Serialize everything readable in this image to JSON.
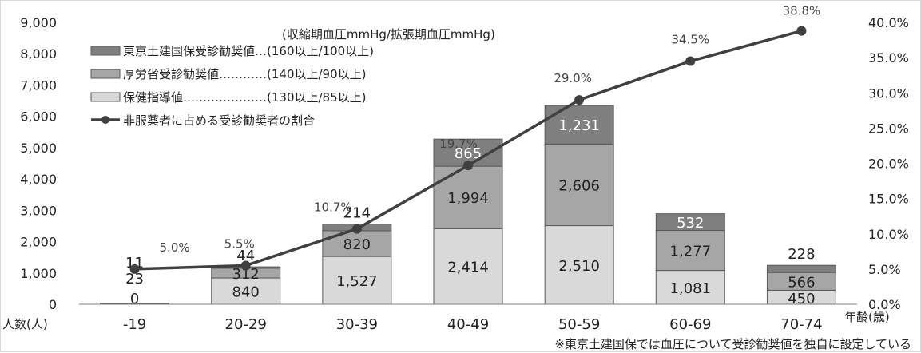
{
  "chart_data": {
    "type": "bar",
    "stacked": true,
    "categories": [
      "-19",
      "20-29",
      "30-39",
      "40-49",
      "50-59",
      "60-69",
      "70-74"
    ],
    "series": [
      {
        "name": "保健指導値…………………(130以上/85以上)",
        "values": [
          0,
          840,
          1527,
          2414,
          2510,
          1081,
          450
        ],
        "color": "#d9d9d9"
      },
      {
        "name": "厚労省受診勧奨値…………(140以上/90以上)",
        "values": [
          23,
          312,
          820,
          1994,
          2606,
          1277,
          566
        ],
        "color": "#a6a6a6"
      },
      {
        "name": "東京土建国保受診勧奨値…(160以上/100以上)",
        "values": [
          11,
          44,
          214,
          865,
          1231,
          532,
          228
        ],
        "color": "#7f7f7f"
      }
    ],
    "line": {
      "name": "非服薬者に占める受診勧奨者の割合",
      "values": [
        5.0,
        5.5,
        10.7,
        19.7,
        29.0,
        34.5,
        38.8
      ],
      "labels": [
        "5.0%",
        "5.5%",
        "10.7%",
        "19.7%",
        "29.0%",
        "34.5%",
        "38.8%"
      ],
      "color": "#404040"
    },
    "legend_title": "(収縮期血圧mmHg/拡張期血圧mmHg)",
    "ylabel": "人数(人)",
    "xlabel": "年齢(歳)",
    "ylim": [
      0,
      9000
    ],
    "y_ticks": [
      "0",
      "1,000",
      "2,000",
      "3,000",
      "4,000",
      "5,000",
      "6,000",
      "7,000",
      "8,000",
      "9,000"
    ],
    "y2lim": [
      0,
      40
    ],
    "y2_ticks": [
      "0.0%",
      "5.0%",
      "10.0%",
      "15.0%",
      "20.0%",
      "25.0%",
      "30.0%",
      "35.0%",
      "40.0%"
    ],
    "note": "※東京土建国保では血圧について受診勧奨値を独自に設定している",
    "legend_placement": "top-left",
    "grid": false
  }
}
